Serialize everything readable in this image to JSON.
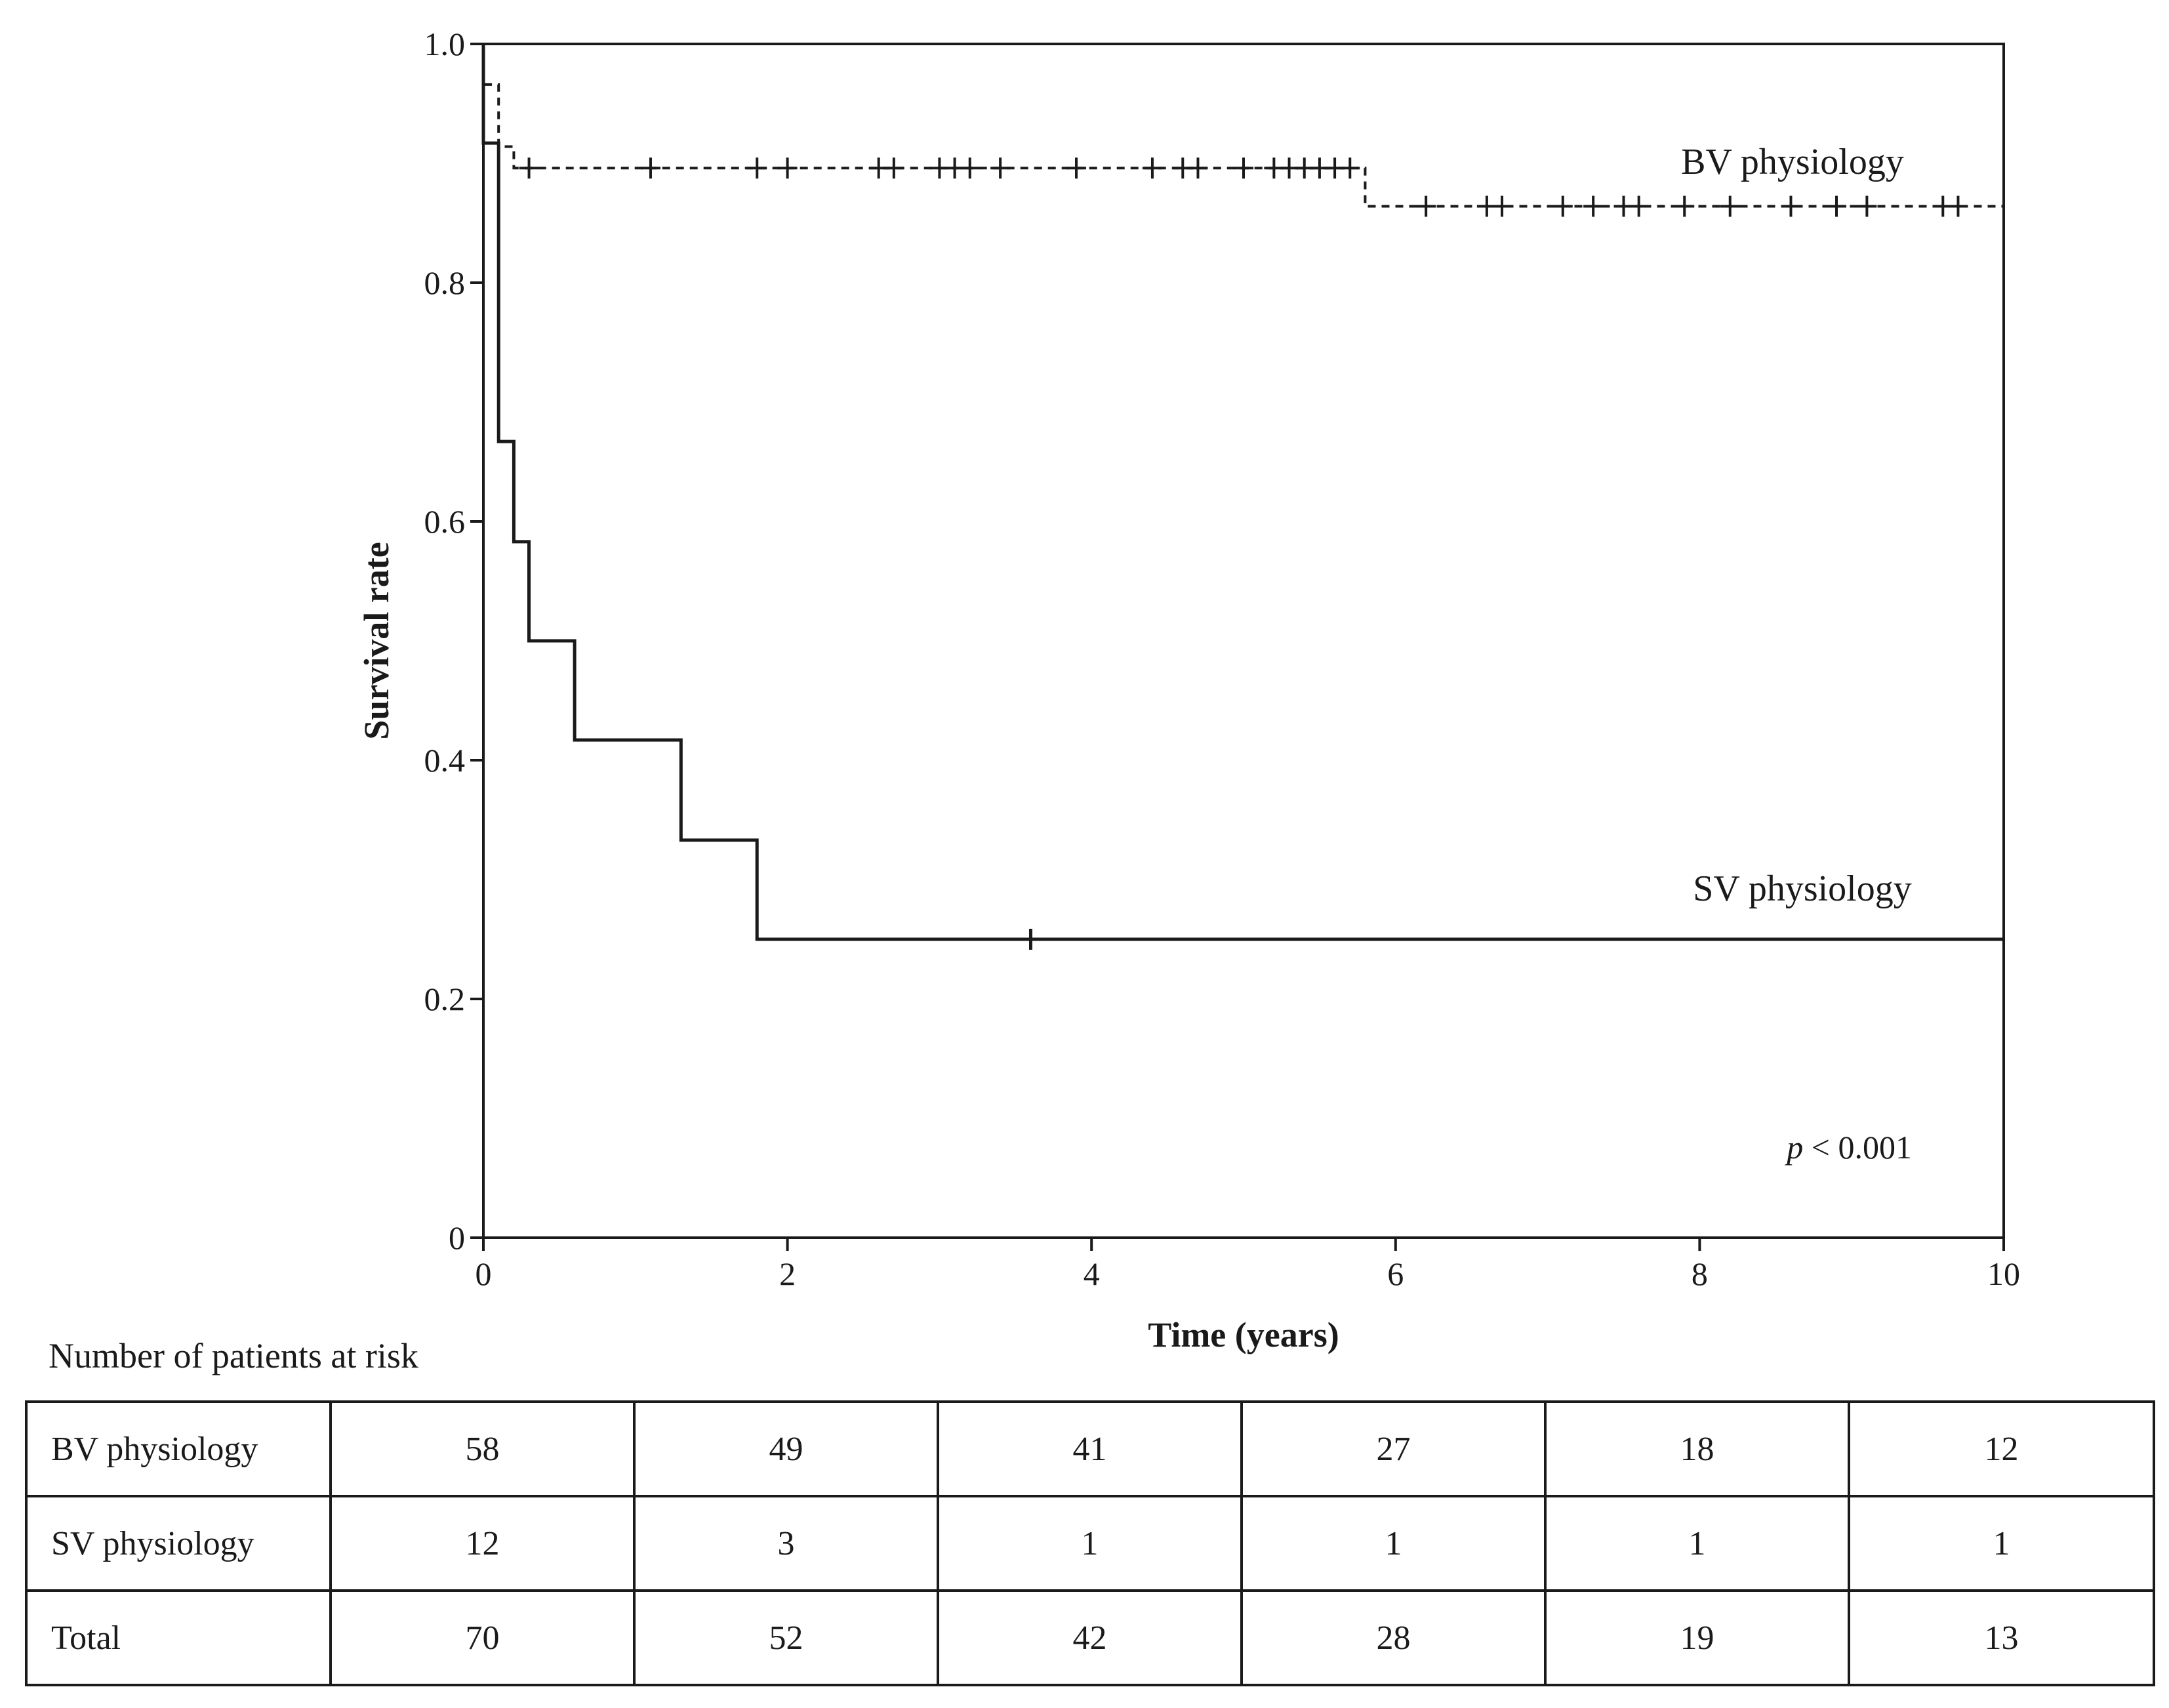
{
  "chart_data": {
    "type": "line",
    "subtype": "kaplan-meier",
    "title": "",
    "xlabel": "Time (years)",
    "ylabel": "Survival rate",
    "xlim": [
      0,
      10
    ],
    "ylim": [
      0,
      1.0
    ],
    "xticks": [
      0,
      2,
      4,
      6,
      8,
      10
    ],
    "xtick_labels": [
      "0",
      "2",
      "4",
      "6",
      "8",
      "10"
    ],
    "yticks": [
      0,
      0.2,
      0.4,
      0.6,
      0.8,
      1.0
    ],
    "ytick_labels": [
      "0",
      "0.2",
      "0.4",
      "0.6",
      "0.8",
      "1.0"
    ],
    "grid": false,
    "annotation": {
      "italic": "p",
      "text": " < 0.001"
    },
    "series": [
      {
        "name": "BV physiology",
        "line_style": "dashed",
        "steps": [
          [
            0,
            1.0
          ],
          [
            0.0,
            0.966
          ],
          [
            0.1,
            0.966
          ],
          [
            0.1,
            0.914
          ],
          [
            0.2,
            0.914
          ],
          [
            0.2,
            0.896
          ],
          [
            5.8,
            0.896
          ],
          [
            5.8,
            0.864
          ],
          [
            10,
            0.864
          ]
        ],
        "censored": [
          0.3,
          1.1,
          1.8,
          2.0,
          2.6,
          2.7,
          3.0,
          3.1,
          3.2,
          3.4,
          3.9,
          4.4,
          4.6,
          4.7,
          5.0,
          5.2,
          5.3,
          5.4,
          5.5,
          5.6,
          5.7,
          6.2,
          6.6,
          6.7,
          7.1,
          7.3,
          7.5,
          7.6,
          7.9,
          8.2,
          8.6,
          8.9,
          9.1,
          9.6,
          9.7
        ]
      },
      {
        "name": "SV physiology",
        "line_style": "solid",
        "steps": [
          [
            0,
            1.0
          ],
          [
            0.0,
            0.917
          ],
          [
            0.1,
            0.917
          ],
          [
            0.1,
            0.667
          ],
          [
            0.2,
            0.667
          ],
          [
            0.2,
            0.583
          ],
          [
            0.3,
            0.583
          ],
          [
            0.3,
            0.5
          ],
          [
            0.6,
            0.5
          ],
          [
            0.6,
            0.417
          ],
          [
            1.3,
            0.417
          ],
          [
            1.3,
            0.333
          ],
          [
            1.8,
            0.333
          ],
          [
            1.8,
            0.25
          ],
          [
            10,
            0.25
          ]
        ],
        "censored": [
          3.6
        ]
      }
    ]
  },
  "risk_table": {
    "heading": "Number of patients at risk",
    "rows": [
      {
        "label": "BV physiology",
        "values": [
          "58",
          "49",
          "41",
          "27",
          "18",
          "12"
        ]
      },
      {
        "label": "SV physiology",
        "values": [
          "12",
          "3",
          "1",
          "1",
          "1",
          "1"
        ]
      },
      {
        "label": "Total",
        "values": [
          "70",
          "52",
          "42",
          "28",
          "19",
          "13"
        ]
      }
    ]
  },
  "colors": {
    "ink": "#1a1a1a",
    "background": "#ffffff"
  }
}
